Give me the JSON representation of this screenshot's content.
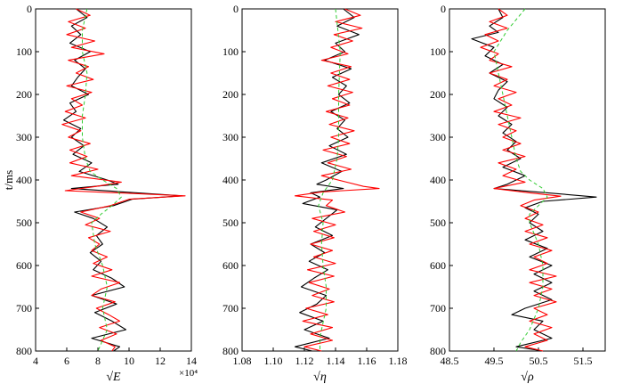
{
  "chart_data": [
    {
      "type": "line",
      "xlabel": "√E",
      "ylabel": "t/ms",
      "x_multiplier": "×10⁴",
      "xlim": [
        4,
        14
      ],
      "ylim": [
        0,
        800
      ],
      "x_ticks": [
        "4",
        "6",
        "8",
        "10",
        "12",
        "14"
      ],
      "y_ticks": [
        "0",
        "100",
        "200",
        "300",
        "400",
        "500",
        "600",
        "700",
        "800"
      ],
      "series": [
        {
          "color": "#000000",
          "t": [
            0,
            20,
            40,
            60,
            80,
            100,
            120,
            140,
            160,
            180,
            200,
            220,
            240,
            260,
            280,
            300,
            320,
            340,
            360,
            380,
            400,
            410,
            420,
            430,
            437,
            445,
            460,
            475,
            490,
            510,
            530,
            550,
            570,
            590,
            610,
            630,
            650,
            670,
            690,
            710,
            730,
            750,
            770,
            790,
            800
          ],
          "x": [
            6.6,
            7.3,
            6.3,
            6.9,
            6.2,
            7.5,
            6.5,
            7.2,
            6.7,
            6.3,
            7.4,
            6.2,
            6.6,
            5.8,
            6.9,
            6.3,
            7.1,
            6.4,
            7.6,
            6.8,
            8.6,
            9.3,
            6.3,
            10.5,
            13.4,
            10.2,
            9.0,
            6.5,
            7.7,
            8.6,
            7.9,
            8.3,
            7.5,
            8.2,
            7.7,
            8.9,
            9.7,
            7.6,
            9.2,
            7.8,
            8.9,
            9.8,
            7.6,
            9.4,
            9.0
          ]
        },
        {
          "color": "#ff0000",
          "t": [
            0,
            15,
            30,
            45,
            60,
            75,
            90,
            105,
            120,
            135,
            150,
            165,
            180,
            195,
            210,
            225,
            240,
            255,
            270,
            285,
            300,
            315,
            330,
            345,
            360,
            375,
            390,
            405,
            415,
            425,
            432,
            437,
            445,
            460,
            475,
            490,
            505,
            520,
            535,
            550,
            565,
            580,
            595,
            610,
            625,
            640,
            655,
            670,
            685,
            700,
            715,
            730,
            745,
            760,
            775,
            790,
            800
          ],
          "x": [
            6.6,
            7.5,
            6.1,
            7.2,
            6.0,
            7.8,
            6.3,
            8.4,
            6.1,
            7.4,
            6.6,
            7.7,
            6.0,
            7.6,
            6.3,
            7.0,
            5.9,
            7.2,
            5.7,
            6.9,
            6.1,
            7.5,
            6.2,
            7.3,
            6.2,
            8.0,
            6.3,
            9.5,
            7.9,
            5.9,
            10.6,
            13.6,
            10.0,
            8.8,
            6.9,
            8.1,
            7.2,
            8.8,
            7.4,
            8.1,
            7.6,
            8.6,
            7.7,
            8.9,
            7.6,
            9.4,
            8.2,
            7.6,
            9.1,
            7.9,
            8.7,
            9.4,
            8.1,
            9.2,
            8.2,
            9.1,
            8.9
          ]
        },
        {
          "color": "#33cc33",
          "dash": "4,3",
          "t": [
            0,
            50,
            100,
            150,
            200,
            250,
            300,
            350,
            380,
            400,
            420,
            440,
            460,
            480,
            500,
            550,
            600,
            650,
            700,
            750,
            800
          ],
          "x": [
            7.3,
            7.0,
            7.0,
            7.3,
            7.2,
            7.0,
            7.0,
            7.2,
            7.5,
            8.3,
            9.2,
            9.5,
            8.9,
            8.2,
            7.6,
            7.8,
            8.3,
            8.6,
            8.3,
            8.6,
            8.0
          ]
        }
      ]
    },
    {
      "type": "line",
      "xlabel": "√η",
      "ylabel": "",
      "xlim": [
        1.08,
        1.18
      ],
      "ylim": [
        0,
        800
      ],
      "x_ticks": [
        "1.08",
        "1.10",
        "1.12",
        "1.14",
        "1.16",
        "1.18"
      ],
      "y_ticks": [
        "0",
        "100",
        "200",
        "300",
        "400",
        "500",
        "600",
        "700",
        "800"
      ],
      "series": [
        {
          "color": "#000000",
          "t": [
            0,
            20,
            40,
            60,
            80,
            100,
            120,
            140,
            160,
            180,
            200,
            220,
            240,
            260,
            280,
            300,
            320,
            340,
            360,
            380,
            400,
            410,
            420,
            430,
            440,
            455,
            470,
            490,
            510,
            530,
            550,
            570,
            590,
            610,
            630,
            650,
            670,
            690,
            710,
            730,
            750,
            770,
            790,
            800
          ],
          "x": [
            1.145,
            1.152,
            1.141,
            1.155,
            1.14,
            1.146,
            1.133,
            1.15,
            1.138,
            1.147,
            1.142,
            1.149,
            1.137,
            1.146,
            1.141,
            1.148,
            1.136,
            1.147,
            1.131,
            1.144,
            1.134,
            1.128,
            1.145,
            1.124,
            1.13,
            1.119,
            1.141,
            1.134,
            1.127,
            1.138,
            1.124,
            1.133,
            1.123,
            1.135,
            1.126,
            1.118,
            1.134,
            1.128,
            1.117,
            1.132,
            1.12,
            1.136,
            1.114,
            1.125
          ]
        },
        {
          "color": "#ff0000",
          "t": [
            0,
            15,
            30,
            45,
            60,
            75,
            90,
            105,
            120,
            135,
            150,
            165,
            180,
            195,
            210,
            225,
            240,
            255,
            270,
            285,
            300,
            315,
            330,
            345,
            360,
            375,
            390,
            405,
            415,
            420,
            428,
            437,
            447,
            460,
            475,
            490,
            505,
            520,
            535,
            550,
            565,
            580,
            595,
            610,
            625,
            640,
            655,
            670,
            685,
            700,
            715,
            730,
            745,
            760,
            775,
            790,
            800
          ],
          "x": [
            1.146,
            1.156,
            1.14,
            1.157,
            1.139,
            1.151,
            1.137,
            1.148,
            1.131,
            1.15,
            1.137,
            1.149,
            1.135,
            1.151,
            1.138,
            1.149,
            1.134,
            1.148,
            1.136,
            1.152,
            1.137,
            1.149,
            1.132,
            1.147,
            1.135,
            1.15,
            1.131,
            1.147,
            1.158,
            1.168,
            1.131,
            1.114,
            1.138,
            1.134,
            1.146,
            1.125,
            1.14,
            1.126,
            1.139,
            1.124,
            1.138,
            1.126,
            1.14,
            1.122,
            1.139,
            1.123,
            1.136,
            1.125,
            1.139,
            1.121,
            1.135,
            1.119,
            1.138,
            1.124,
            1.138,
            1.12,
            1.131
          ]
        },
        {
          "color": "#33cc33",
          "dash": "4,3",
          "t": [
            0,
            100,
            200,
            300,
            350,
            400,
            430,
            460,
            500,
            550,
            600,
            650,
            700,
            750,
            770,
            800
          ],
          "x": [
            1.14,
            1.143,
            1.142,
            1.142,
            1.141,
            1.138,
            1.132,
            1.129,
            1.132,
            1.131,
            1.132,
            1.134,
            1.134,
            1.131,
            1.13,
            1.13
          ]
        }
      ]
    },
    {
      "type": "line",
      "xlabel": "√ρ",
      "ylabel": "",
      "xlim": [
        48.5,
        52.0
      ],
      "ylim": [
        0,
        800
      ],
      "x_ticks": [
        "48.5",
        "49.5",
        "50.5",
        "51.5"
      ],
      "y_ticks": [
        "0",
        "100",
        "200",
        "300",
        "400",
        "500",
        "600",
        "700",
        "800"
      ],
      "series": [
        {
          "color": "#000000",
          "t": [
            0,
            20,
            40,
            55,
            70,
            90,
            110,
            130,
            150,
            170,
            190,
            210,
            230,
            250,
            270,
            290,
            310,
            330,
            350,
            370,
            390,
            410,
            420,
            430,
            440,
            450,
            465,
            480,
            500,
            520,
            540,
            560,
            580,
            600,
            620,
            640,
            660,
            680,
            700,
            715,
            730,
            750,
            770,
            790,
            800
          ],
          "x": [
            49.6,
            49.7,
            49.4,
            49.6,
            49.0,
            49.5,
            49.3,
            49.7,
            49.4,
            49.8,
            49.6,
            49.5,
            49.8,
            49.6,
            49.9,
            49.7,
            50.0,
            49.8,
            50.1,
            49.7,
            50.2,
            49.8,
            49.5,
            50.7,
            51.8,
            50.6,
            50.2,
            50.5,
            50.3,
            50.6,
            50.2,
            50.7,
            50.3,
            50.8,
            50.4,
            50.8,
            50.4,
            50.8,
            50.2,
            49.9,
            50.6,
            50.4,
            50.8,
            50.0,
            50.6
          ]
        },
        {
          "color": "#ff0000",
          "t": [
            0,
            15,
            30,
            45,
            60,
            75,
            90,
            105,
            120,
            135,
            150,
            165,
            180,
            195,
            210,
            225,
            240,
            255,
            270,
            285,
            300,
            315,
            330,
            345,
            360,
            375,
            390,
            405,
            420,
            430,
            438,
            447,
            460,
            475,
            490,
            505,
            520,
            535,
            550,
            565,
            580,
            595,
            610,
            625,
            640,
            655,
            670,
            685,
            700,
            715,
            730,
            745,
            760,
            775,
            790,
            800
          ],
          "x": [
            49.6,
            49.8,
            49.4,
            49.8,
            49.3,
            49.6,
            49.2,
            49.6,
            49.4,
            49.9,
            49.4,
            49.8,
            49.5,
            50.0,
            49.6,
            49.9,
            49.5,
            50.1,
            49.6,
            50.0,
            49.7,
            50.1,
            49.7,
            50.2,
            49.6,
            50.0,
            49.7,
            50.2,
            49.5,
            50.3,
            51.0,
            50.4,
            50.1,
            50.5,
            50.2,
            50.6,
            50.2,
            50.7,
            50.3,
            50.8,
            50.4,
            50.7,
            50.3,
            50.9,
            50.3,
            50.8,
            50.4,
            50.9,
            50.4,
            50.7,
            50.3,
            50.8,
            50.4,
            50.7,
            50.2,
            50.6
          ]
        },
        {
          "color": "#33cc33",
          "dash": "4,3",
          "t": [
            0,
            50,
            100,
            150,
            200,
            250,
            300,
            350,
            380,
            400,
            420,
            440,
            460,
            480,
            500,
            550,
            600,
            650,
            700,
            750,
            780,
            800
          ],
          "x": [
            50.2,
            49.8,
            49.5,
            49.6,
            49.7,
            49.8,
            49.9,
            50.0,
            50.1,
            50.3,
            50.6,
            50.7,
            50.5,
            50.3,
            50.3,
            50.5,
            50.6,
            50.6,
            50.5,
            50.3,
            50.1,
            50.0
          ]
        }
      ]
    }
  ]
}
